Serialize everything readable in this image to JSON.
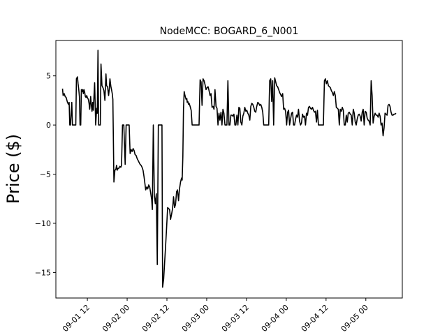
{
  "chart_data": {
    "type": "line",
    "title": "NodeMCC: BOGARD_6_N001",
    "xlabel": "",
    "ylabel": "Price ($)",
    "x_ticks": [
      "09-01 12",
      "09-02 00",
      "09-02 12",
      "09-03 00",
      "09-03 12",
      "09-04 00",
      "09-04 12",
      "09-05 00"
    ],
    "y_ticks": [
      5,
      0,
      -5,
      -10,
      -15
    ],
    "y_tick_labels": [
      "5",
      "0",
      "−5",
      "−10",
      "−15"
    ],
    "xlim_hours": [
      -9.5,
      95.0
    ],
    "ylim": [
      -17.6,
      8.6
    ],
    "grid": false,
    "line_color": "#000000",
    "series": [
      {
        "x_hours": [
          -7.5,
          -7.3,
          -7.0,
          -6.7,
          -6.4,
          -6.0,
          -5.7,
          -5.5,
          -5.3,
          -5.1,
          -4.7,
          -4.5,
          -4.2,
          -3.8,
          -3.5,
          -3.3,
          -3.0,
          -2.8,
          -2.6,
          -2.4,
          -2.2,
          -2.0,
          -1.8,
          -1.6,
          -1.4,
          -1.2,
          -1.0,
          -0.8,
          -0.6,
          -0.4,
          -0.2,
          0.0,
          0.3,
          0.5,
          0.7,
          1.0,
          1.2,
          1.4,
          1.6,
          1.8,
          2.0,
          2.2,
          2.5,
          2.8,
          3.0,
          3.2,
          3.4,
          3.7,
          3.9,
          4.1,
          4.4,
          4.7,
          5.0,
          5.3,
          5.6,
          5.8,
          6.1,
          6.4,
          6.6,
          6.8,
          7.1,
          7.3,
          7.5,
          7.7,
          8.0,
          8.3,
          8.6,
          8.8,
          9.0,
          9.3,
          9.5,
          9.8,
          10.1,
          10.3,
          10.6,
          10.8,
          11.0,
          11.4,
          11.7,
          12.0,
          12.3,
          12.6,
          12.9,
          13.2,
          13.5,
          13.8,
          14.1,
          14.4,
          14.7,
          15.0,
          15.3,
          15.6,
          15.9,
          16.2,
          16.5,
          16.8,
          17.1,
          17.3,
          17.6,
          17.9,
          18.2,
          18.5,
          18.8,
          19.1,
          19.4,
          19.6,
          19.9,
          20.2,
          20.5,
          20.8,
          21.1,
          21.4,
          21.7,
          21.9,
          22.1,
          22.3,
          22.5,
          22.7,
          23.0,
          23.3,
          23.6,
          23.9,
          24.2,
          24.5,
          24.8,
          25.1,
          25.4,
          25.7,
          26.0,
          26.3,
          26.6,
          26.9,
          27.2,
          27.5,
          27.8,
          28.1,
          28.4,
          28.6,
          28.8,
          29.0,
          29.2,
          29.4,
          29.6,
          29.8,
          30.0,
          30.1,
          30.3,
          30.5,
          30.7,
          31.0,
          31.3,
          31.6,
          31.9,
          32.2,
          32.5,
          32.8,
          33.1,
          33.4,
          33.7,
          34.0,
          34.3,
          34.6,
          34.9,
          35.2,
          35.5,
          35.8,
          36.1,
          36.4,
          36.7,
          37.0,
          37.3,
          37.6,
          37.9,
          38.2,
          38.5,
          38.8,
          39.1,
          39.4,
          39.7,
          40.0,
          40.3,
          40.6,
          40.9,
          41.2,
          41.5,
          41.8,
          42.1,
          42.4,
          42.7,
          43.0,
          43.3,
          43.6,
          43.9,
          44.2,
          44.5,
          44.8,
          45.1,
          45.4,
          45.7,
          46.0,
          46.3,
          46.6,
          46.9,
          47.2,
          47.5,
          47.8,
          48.1,
          48.4,
          48.7,
          49.0,
          49.3,
          49.6,
          49.9,
          50.2,
          50.5,
          50.8,
          51.1,
          51.4,
          51.7,
          52.0,
          52.3,
          52.6,
          52.9,
          53.2,
          53.5,
          53.8,
          54.1,
          54.4,
          54.7,
          55.0,
          55.3,
          55.6,
          55.9,
          56.2,
          56.5,
          56.8,
          57.1,
          57.4,
          57.7,
          58.0,
          58.3,
          58.6,
          58.9,
          59.2,
          59.5,
          59.8,
          60.1,
          60.4,
          60.7,
          61.0,
          61.3,
          61.6,
          61.9,
          62.2,
          62.5,
          62.8,
          63.1,
          63.4,
          63.7,
          64.0,
          64.3,
          64.6,
          64.9,
          65.2,
          65.5,
          65.8,
          66.1,
          66.4,
          66.7,
          67.0,
          67.3,
          67.6,
          67.9,
          68.2,
          68.5,
          68.8,
          69.1,
          69.4,
          69.7,
          70.0,
          70.3,
          70.6,
          70.9,
          71.2,
          71.5,
          71.8,
          72.1,
          72.4,
          72.7,
          73.0,
          73.3,
          73.6,
          73.9,
          74.2,
          74.5,
          74.8,
          75.1,
          75.4,
          75.7,
          76.0,
          76.3,
          76.6,
          76.9,
          77.2,
          77.5,
          77.8,
          78.1,
          78.4,
          78.7,
          79.0,
          79.3,
          79.6,
          79.9,
          80.2,
          80.5,
          80.8,
          81.1,
          81.4,
          81.7,
          82.0,
          82.3,
          82.6,
          82.9,
          83.2,
          83.5,
          83.8,
          84.1,
          84.4,
          84.7,
          85.0,
          85.3,
          85.6,
          85.9,
          86.2,
          86.5,
          86.8,
          87.1,
          87.4,
          87.7,
          88.0,
          88.3,
          88.6,
          88.9,
          89.2,
          89.5,
          89.8,
          90.1,
          90.4,
          90.7,
          91.0,
          91.3,
          91.6,
          91.9,
          92.2,
          92.5,
          92.8,
          93.1
        ],
        "values": [
          3.7,
          3.0,
          3.2,
          2.9,
          2.8,
          2.3,
          2.1,
          2.3,
          0.0,
          0.0,
          2.3,
          0.0,
          0.0,
          0.0,
          0.0,
          4.7,
          4.9,
          4.2,
          3.6,
          2.9,
          0.0,
          0.0,
          3.6,
          3.4,
          3.6,
          3.2,
          3.6,
          3.3,
          2.9,
          2.8,
          3.0,
          2.8,
          2.6,
          2.2,
          1.6,
          2.9,
          2.0,
          1.4,
          2.3,
          1.5,
          3.0,
          4.3,
          0.0,
          1.7,
          1.2,
          7.6,
          0.0,
          0.0,
          0.0,
          6.2,
          4.0,
          3.8,
          3.5,
          2.5,
          5.2,
          4.0,
          3.9,
          3.0,
          3.6,
          4.7,
          3.9,
          3.6,
          3.2,
          2.6,
          -5.8,
          -4.6,
          -4.5,
          -4.1,
          -4.6,
          -4.4,
          -4.4,
          -4.2,
          -4.3,
          -4.1,
          0.0,
          0.0,
          0.0,
          -4.0,
          0.0,
          0.0,
          0.0,
          0.0,
          -2.9,
          -2.5,
          -2.7,
          -2.4,
          -2.6,
          -3.0,
          -3.1,
          -3.4,
          -3.6,
          -3.8,
          -4.0,
          -4.1,
          -4.3,
          -4.6,
          -5.3,
          -5.8,
          -6.6,
          -6.3,
          -6.5,
          -6.1,
          -6.3,
          -6.9,
          -7.6,
          -8.6,
          0.0,
          -7.2,
          -8.0,
          -7.0,
          -14.2,
          0.0,
          0.0,
          0.0,
          0.0,
          0.0,
          0.0,
          -16.5,
          -15.7,
          -14.0,
          -12.3,
          -10.5,
          -8.4,
          -8.5,
          -8.6,
          -9.6,
          -9.1,
          -8.5,
          -7.3,
          -8.4,
          -8.1,
          -6.8,
          -6.6,
          -7.7,
          -6.5,
          -5.8,
          -5.4,
          -5.6,
          -3.2,
          1.6,
          3.4,
          3.1,
          2.8,
          2.6,
          2.7,
          2.3,
          2.4,
          2.1,
          2.2,
          1.9,
          1.5,
          0.0,
          0.0,
          0.0,
          0.0,
          0.0,
          0.0,
          0.0,
          0.0,
          4.6,
          4.4,
          2.0,
          4.7,
          4.5,
          4.1,
          3.6,
          3.8,
          3.9,
          3.5,
          3.0,
          3.2,
          1.8,
          1.9,
          1.6,
          3.6,
          1.9,
          1.7,
          0.0,
          1.2,
          0.5,
          1.3,
          0.0,
          1.6,
          1.2,
          0.0,
          0.0,
          0.0,
          4.5,
          0.0,
          0.0,
          1.0,
          1.0,
          0.9,
          1.1,
          0.0,
          0.0,
          1.0,
          0.0,
          1.8,
          1.7,
          0.3,
          0.0,
          0.9,
          1.2,
          1.8,
          1.4,
          1.5,
          1.2,
          1.0,
          0.5,
          1.9,
          2.2,
          2.1,
          1.8,
          1.4,
          1.3,
          1.9,
          2.3,
          2.2,
          2.0,
          2.1,
          1.8,
          1.3,
          0.0,
          0.0,
          0.0,
          0.0,
          0.0,
          0.0,
          4.5,
          4.7,
          2.4,
          4.5,
          0.0,
          4.8,
          4.4,
          4.0,
          3.9,
          3.6,
          3.3,
          3.1,
          2.9,
          3.2,
          1.6,
          1.7,
          1.4,
          0.0,
          1.3,
          1.5,
          0.0,
          0.6,
          1.2,
          1.3,
          0.0,
          0.0,
          0.6,
          1.0,
          0.8,
          1.6,
          0.4,
          0.0,
          0.2,
          1.1,
          0.8,
          0.9,
          0.0,
          1.2,
          1.0,
          1.8,
          1.9,
          1.7,
          1.6,
          1.8,
          1.5,
          1.3,
          1.4,
          0.3,
          1.5,
          0.0,
          0.0,
          0.0,
          0.0,
          0.0,
          0.0,
          4.5,
          4.7,
          4.2,
          4.5,
          4.0,
          3.9,
          3.8,
          3.5,
          3.3,
          3.0,
          3.4,
          3.0,
          1.8,
          1.7,
          1.6,
          0.0,
          1.6,
          1.4,
          1.8,
          1.5,
          0.0,
          0.0,
          1.0,
          0.3,
          1.2,
          1.3,
          1.1,
          1.0,
          0.0,
          1.6,
          1.2,
          0.3,
          0.0,
          0.6,
          1.0,
          1.1,
          0.9,
          0.4,
          1.3,
          1.6,
          0.0,
          1.4,
          1.3,
          0.7,
          0.5,
          0.4,
          0.0,
          4.5,
          3.0,
          0.2,
          0.9,
          1.2,
          1.0,
          1.0,
          0.8,
          1.2,
          0.9,
          0.0,
          0.2,
          -1.1,
          -0.3,
          1.2,
          1.1,
          1.0,
          2.0,
          2.1,
          1.9,
          1.3,
          1.0,
          1.0,
          1.1,
          1.1,
          1.2
        ]
      }
    ]
  }
}
